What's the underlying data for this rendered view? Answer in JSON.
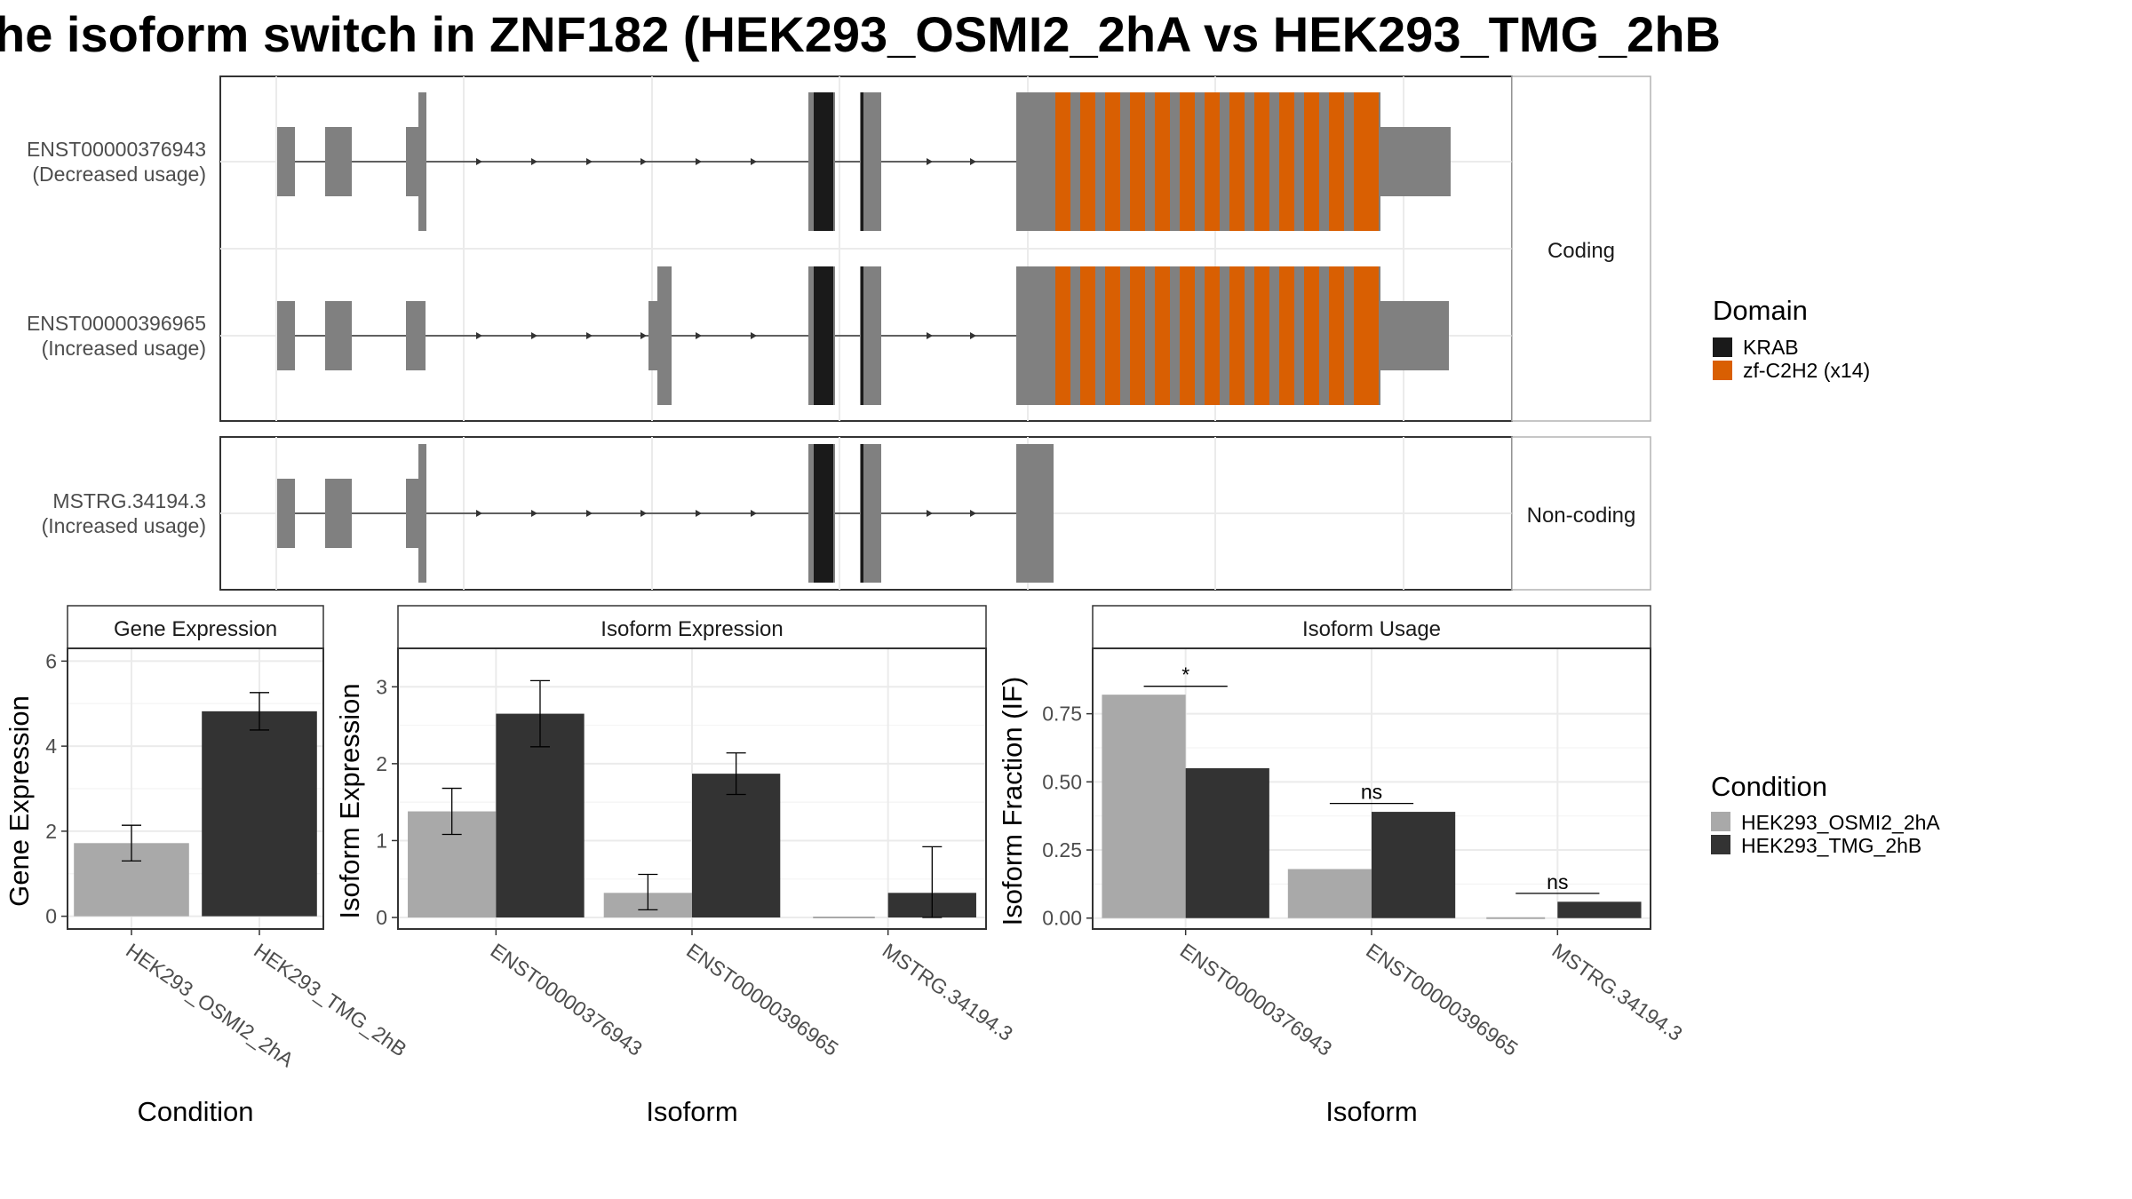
{
  "title": "he isoform switch in ZNF182 (HEK293_OSMI2_2hA vs HEK293_TMG_2hB",
  "colors": {
    "exon": "#808080",
    "KRAB": "#1a1a1a",
    "zf": "#d95f02",
    "cond_a": "#a9a9a9",
    "cond_b": "#333333"
  },
  "structure": {
    "coding_strip": "Coding",
    "noncoding_strip": "Non-coding",
    "isoforms": [
      {
        "id": "ENST00000376943",
        "usage": "(Decreased usage)",
        "group": "coding"
      },
      {
        "id": "ENST00000396965",
        "usage": "(Increased usage)",
        "group": "coding"
      },
      {
        "id": "MSTRG.34194.3",
        "usage": "(Increased usage)",
        "group": "noncoding"
      }
    ],
    "domain_legend": {
      "title": "Domain",
      "items": [
        {
          "label": "KRAB",
          "color": "#1a1a1a"
        },
        {
          "label": "zf-C2H2 (x14)",
          "color": "#d95f02"
        }
      ]
    }
  },
  "chart_data": [
    {
      "type": "bar",
      "title": "Gene Expression",
      "xlabel": "Condition",
      "ylabel": "Gene Expression",
      "categories": [
        "HEK293_OSMI2_2hA",
        "HEK293_TMG_2hB"
      ],
      "values": [
        1.72,
        4.82
      ],
      "error_low": [
        1.3,
        4.38
      ],
      "error_high": [
        2.14,
        5.26
      ],
      "ylim": [
        -0.3,
        6.3
      ],
      "yticks": [
        "0",
        "2",
        "4",
        "6"
      ]
    },
    {
      "type": "bar",
      "title": "Isoform Expression",
      "xlabel": "Isoform",
      "ylabel": "Isoform Expression",
      "categories": [
        "ENST00000376943",
        "ENST00000396965",
        "MSTRG.34194.3"
      ],
      "series": [
        {
          "name": "HEK293_OSMI2_2hA",
          "values": [
            1.38,
            0.32,
            0.0
          ],
          "error_low": [
            1.08,
            0.1,
            null
          ],
          "error_high": [
            1.68,
            0.56,
            null
          ]
        },
        {
          "name": "HEK293_TMG_2hB",
          "values": [
            2.65,
            1.87,
            0.32
          ],
          "error_low": [
            2.22,
            1.6,
            0.0
          ],
          "error_high": [
            3.08,
            2.14,
            0.92
          ]
        }
      ],
      "ylim": [
        -0.15,
        3.5
      ],
      "yticks": [
        "0",
        "1",
        "2",
        "3"
      ]
    },
    {
      "type": "bar",
      "title": "Isoform Usage",
      "xlabel": "Isoform",
      "ylabel": "Isoform Fraction (IF)",
      "categories": [
        "ENST00000376943",
        "ENST00000396965",
        "MSTRG.34194.3"
      ],
      "series": [
        {
          "name": "HEK293_OSMI2_2hA",
          "values": [
            0.82,
            0.18,
            0.0
          ]
        },
        {
          "name": "HEK293_TMG_2hB",
          "values": [
            0.55,
            0.39,
            0.06
          ]
        }
      ],
      "significance": [
        "*",
        "ns",
        "ns"
      ],
      "ylim": [
        -0.04,
        0.99
      ],
      "yticks": [
        "0.00",
        "0.25",
        "0.50",
        "0.75"
      ]
    }
  ],
  "condition_legend": {
    "title": "Condition",
    "items": [
      {
        "label": "HEK293_OSMI2_2hA",
        "color": "#a9a9a9"
      },
      {
        "label": "HEK293_TMG_2hB",
        "color": "#333333"
      }
    ]
  }
}
